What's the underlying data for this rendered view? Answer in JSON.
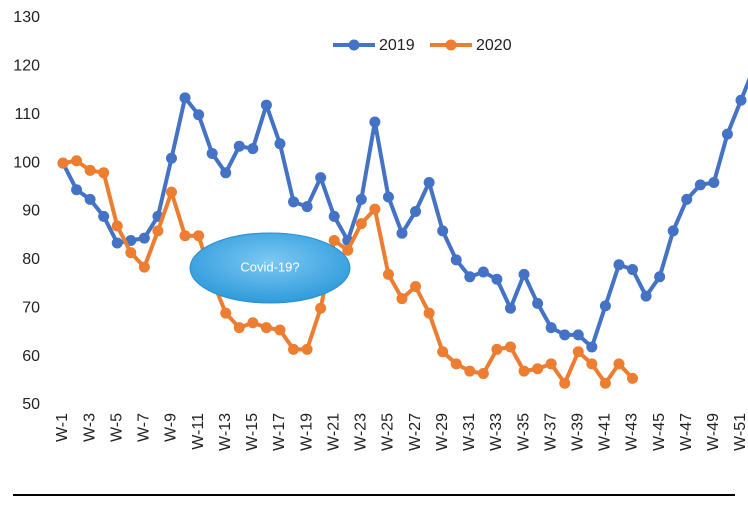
{
  "chart_data": {
    "type": "line",
    "categories": [
      "W-1",
      null,
      "W-3",
      null,
      "W-5",
      null,
      "W-7",
      null,
      "W-9",
      null,
      "W-11",
      null,
      "W-13",
      null,
      "W-15",
      null,
      "W-17",
      null,
      "W-19",
      null,
      "W-21",
      null,
      "W-23",
      null,
      "W-25",
      null,
      "W-27",
      null,
      "W-29",
      null,
      "W-31",
      null,
      "W-33",
      null,
      "W-35",
      null,
      "W-37",
      null,
      "W-39",
      null,
      "W-41",
      null,
      "W-43",
      null,
      "W-45",
      null,
      "W-47",
      null,
      "W-49",
      null,
      "W-51",
      null
    ],
    "series": [
      {
        "name": "2019",
        "color": "#4472c4",
        "values": [
          100,
          94.5,
          92.5,
          89,
          83.5,
          84,
          84.5,
          89,
          101,
          113.5,
          110,
          102,
          98,
          103.5,
          103,
          112,
          104,
          92,
          91,
          97,
          89,
          84,
          92.5,
          108.5,
          93,
          85.5,
          90,
          96,
          86,
          80,
          76.5,
          77.5,
          76,
          70,
          77,
          71,
          66,
          64.5,
          64.5,
          62,
          70.5,
          79,
          78,
          72.5,
          76.5,
          86,
          92.5,
          95.5,
          96,
          106,
          113,
          120
        ]
      },
      {
        "name": "2020",
        "color": "#ed7d31",
        "values": [
          100,
          100.5,
          98.5,
          98,
          87,
          81.5,
          78.5,
          86,
          94,
          85,
          85,
          76,
          69,
          66,
          67,
          66,
          65.5,
          61.5,
          61.5,
          70,
          84,
          82,
          87.5,
          90.5,
          77,
          72,
          74.5,
          69,
          61,
          58.5,
          57,
          56.5,
          61.5,
          62,
          57,
          57.5,
          58.5,
          54.5,
          61,
          58.5,
          54.5,
          58.5,
          55.5,
          null,
          null,
          null,
          null,
          null,
          null,
          null,
          null,
          null
        ]
      }
    ],
    "ylim": [
      50,
      130
    ],
    "yticks": [
      50,
      60,
      70,
      80,
      90,
      100,
      110,
      120,
      130
    ],
    "annotation": "Covid-19?",
    "legend": "top"
  }
}
